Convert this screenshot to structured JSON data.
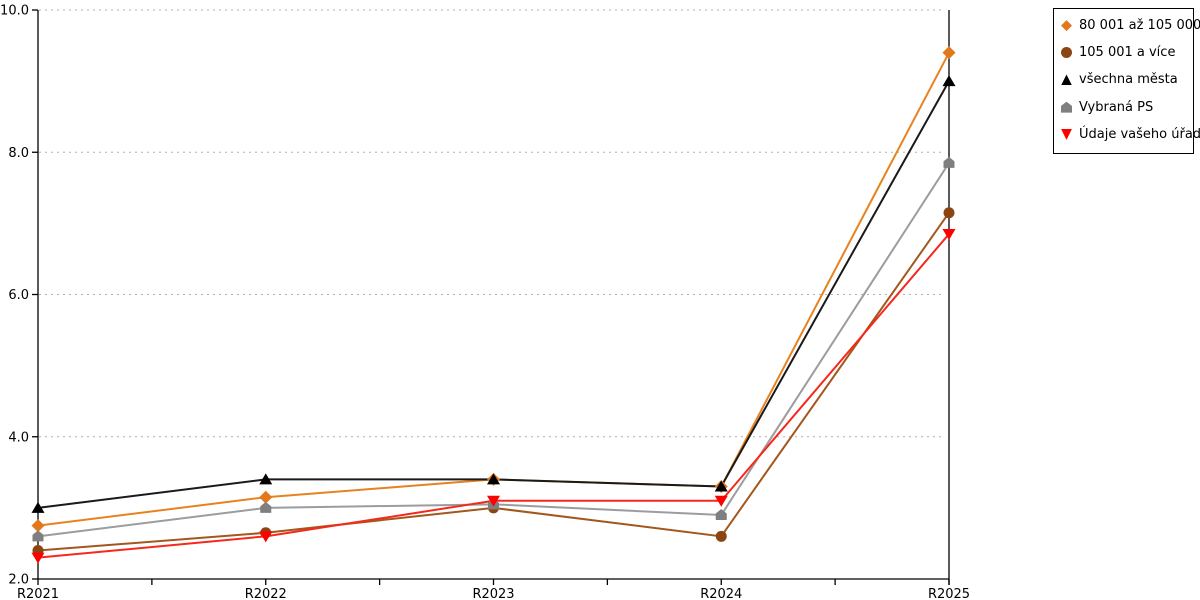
{
  "chart_data": {
    "type": "line",
    "title": "",
    "xlabel": "",
    "ylabel": "",
    "categories": [
      "R2021",
      "R2022",
      "R2023",
      "R2024",
      "R2025"
    ],
    "series": [
      {
        "name": "80 001 až 105 000",
        "marker": "diamond",
        "color": "#E2781A",
        "line_color": "#E8821E",
        "values": [
          2.75,
          3.15,
          3.4,
          3.3,
          9.4
        ]
      },
      {
        "name": "105 001 a více",
        "marker": "circle",
        "color": "#8B4513",
        "line_color": "#A3571C",
        "values": [
          2.4,
          2.65,
          3.0,
          2.6,
          7.15
        ]
      },
      {
        "name": "všechna města",
        "marker": "triangle-up",
        "color": "#000000",
        "line_color": "#1A1A1A",
        "values": [
          3.0,
          3.4,
          3.4,
          3.3,
          9.0
        ]
      },
      {
        "name": "Vybraná PS",
        "marker": "pentagon",
        "color": "#7F7F7F",
        "line_color": "#9C9C9C",
        "values": [
          2.6,
          3.0,
          3.05,
          2.9,
          7.85
        ]
      },
      {
        "name": "Údaje vašeho úřadu",
        "marker": "triangle-down",
        "color": "#FF0000",
        "line_color": "#F6281B",
        "values": [
          2.3,
          2.6,
          3.1,
          3.1,
          6.85
        ]
      }
    ],
    "ylim": [
      2.0,
      10.0
    ],
    "yticks": [
      2.0,
      4.0,
      6.0,
      8.0,
      10.0
    ],
    "ytick_labels": [
      "2.0",
      "4.0",
      "6.0",
      "8.0",
      "10.0"
    ],
    "grid": "horizontal dotted",
    "grid_color": "#B0B0B0",
    "axis_color": "#000000",
    "legend_position": "top-right"
  }
}
